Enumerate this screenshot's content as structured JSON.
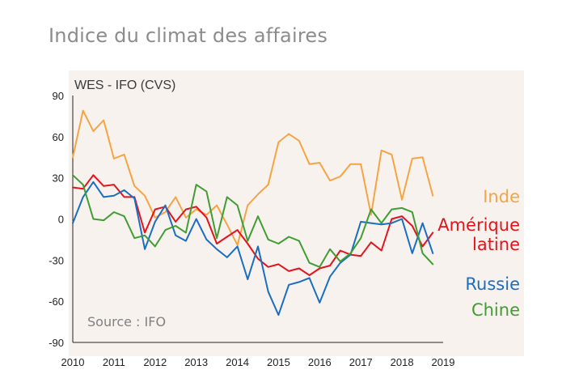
{
  "title": "Indice du climat des affaires",
  "chart_data": {
    "type": "line",
    "subtitle": "WES - IFO (CVS)",
    "source": "Source : IFO",
    "x_labels": [
      "2010",
      "2011",
      "2012",
      "2013",
      "2014",
      "2015",
      "2016",
      "2017",
      "2018",
      "2019"
    ],
    "y_ticks": [
      90,
      60,
      30,
      0,
      -30,
      -60,
      -90
    ],
    "y_tick_labels": [
      "90",
      "60",
      "30",
      "0",
      "-30",
      "-60",
      "-90"
    ],
    "xlim": [
      2010,
      2019
    ],
    "ylim": [
      -90,
      90
    ],
    "series": [
      {
        "name": "Inde",
        "label_lines": [
          "Inde"
        ],
        "color": "#f5a443",
        "x": [
          2010,
          2010.25,
          2010.5,
          2010.75,
          2011,
          2011.25,
          2011.5,
          2011.75,
          2012,
          2012.25,
          2012.5,
          2012.75,
          2013,
          2013.25,
          2013.5,
          2013.75,
          2014,
          2014.25,
          2014.5,
          2014.75,
          2015,
          2015.25,
          2015.5,
          2015.75,
          2016,
          2016.25,
          2016.5,
          2016.75,
          2017,
          2017.25,
          2017.5,
          2017.75,
          2018,
          2018.25,
          2018.5,
          2018.75
        ],
        "values": [
          45,
          79,
          64,
          72,
          44,
          47,
          24,
          17,
          1,
          5,
          16,
          1,
          7,
          3,
          10,
          -4,
          -19,
          10,
          18,
          25,
          56,
          62,
          57,
          40,
          41,
          28,
          31,
          40,
          40,
          3,
          50,
          47,
          14,
          44,
          45,
          17
        ]
      },
      {
        "name": "Amérique latine",
        "label_lines": [
          "Amérique",
          "latine"
        ],
        "color": "#e3131c",
        "x": [
          2010,
          2010.25,
          2010.5,
          2010.75,
          2011,
          2011.25,
          2011.5,
          2011.75,
          2012,
          2012.25,
          2012.5,
          2012.75,
          2013,
          2013.25,
          2013.5,
          2013.75,
          2014,
          2014.25,
          2014.5,
          2014.75,
          2015,
          2015.25,
          2015.5,
          2015.75,
          2016,
          2016.25,
          2016.5,
          2016.75,
          2017,
          2017.25,
          2017.5,
          2017.75,
          2018,
          2018.25,
          2018.5,
          2018.75
        ],
        "values": [
          23,
          22,
          32,
          24,
          25,
          16,
          16,
          -10,
          7,
          9,
          -2,
          7,
          9,
          1,
          -18,
          -13,
          -8,
          -18,
          -29,
          -35,
          -33,
          -38,
          -36,
          -41,
          -36,
          -34,
          -23,
          -26,
          -27,
          -17,
          -23,
          0,
          2,
          -5,
          -20,
          -10
        ]
      },
      {
        "name": "Russie",
        "label_lines": [
          "Russie"
        ],
        "color": "#1a6ec2",
        "x": [
          2010,
          2010.25,
          2010.5,
          2010.75,
          2011,
          2011.25,
          2011.5,
          2011.75,
          2012,
          2012.25,
          2012.5,
          2012.75,
          2013,
          2013.25,
          2013.5,
          2013.75,
          2014,
          2014.25,
          2014.5,
          2014.75,
          2015,
          2015.25,
          2015.5,
          2015.75,
          2016,
          2016.25,
          2016.5,
          2016.75,
          2017,
          2017.25,
          2017.5,
          2017.75,
          2018,
          2018.25,
          2018.5,
          2018.75
        ],
        "values": [
          -3,
          16,
          27,
          16,
          17,
          21,
          15,
          -22,
          -2,
          10,
          -12,
          -16,
          0,
          -15,
          -22,
          -28,
          -20,
          -44,
          -20,
          -53,
          -70,
          -48,
          -46,
          -43,
          -61,
          -42,
          -32,
          -26,
          -2,
          -3,
          -4,
          -3,
          0,
          -25,
          -3,
          -25
        ]
      },
      {
        "name": "Chine",
        "label_lines": [
          "Chine"
        ],
        "color": "#3f9d32",
        "x": [
          2010,
          2010.25,
          2010.5,
          2010.75,
          2011,
          2011.25,
          2011.5,
          2011.75,
          2012,
          2012.25,
          2012.5,
          2012.75,
          2013,
          2013.25,
          2013.5,
          2013.75,
          2014,
          2014.25,
          2014.5,
          2014.75,
          2015,
          2015.25,
          2015.5,
          2015.75,
          2016,
          2016.25,
          2016.5,
          2016.75,
          2017,
          2017.25,
          2017.5,
          2017.75,
          2018,
          2018.25,
          2018.5,
          2018.75
        ],
        "values": [
          32,
          25,
          0,
          -1,
          5,
          2,
          -14,
          -12,
          -20,
          -8,
          -5,
          -10,
          25,
          20,
          -14,
          16,
          10,
          -16,
          2,
          -15,
          -18,
          -13,
          -16,
          -32,
          -35,
          -22,
          -31,
          -25,
          -14,
          7,
          -3,
          7,
          8,
          5,
          -25,
          -33
        ]
      }
    ]
  }
}
